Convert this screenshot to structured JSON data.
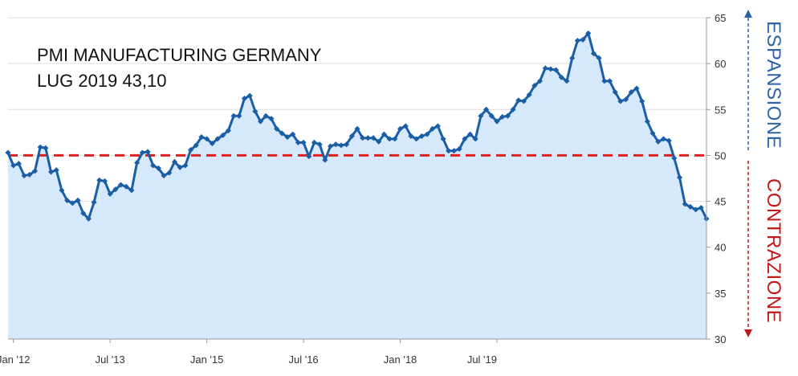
{
  "colors": {
    "line": "#1a5fa6",
    "fill": "#d6e8fb",
    "threshold": "#e02020",
    "expansion": "#2e63a8",
    "contraction": "#c01818",
    "grid": "#dddddd"
  },
  "chart_data": {
    "type": "area",
    "title": "PMI MANUFACTURING GERMANY",
    "subtitle": "LUG 2019 43,10",
    "x_tick_labels": [
      "Jan '12",
      "Jul '13",
      "Jan '15",
      "Jul '16",
      "Jan '18",
      "Jul '19"
    ],
    "x_tick_months": [
      0,
      18,
      36,
      54,
      72,
      90
    ],
    "y_ticks": [
      30,
      35,
      40,
      45,
      50,
      55,
      60,
      65
    ],
    "ylim": [
      30,
      65
    ],
    "grid": "horizontal",
    "threshold": 50,
    "expansion_label": "ESPANSIONE",
    "contraction_label": "CONTRAZIONE",
    "series": [
      {
        "x_start": "Dec 2011",
        "values": [
          50.3,
          48.9,
          49.1,
          47.8,
          47.9,
          48.3,
          50.9,
          50.8,
          48.2,
          48.4,
          46.2,
          45.1,
          44.8,
          45.1,
          43.7,
          43.1,
          44.9,
          47.3,
          47.2,
          45.8,
          46.3,
          46.8,
          46.6,
          46.2,
          49.2,
          50.3,
          50.4,
          48.9,
          48.6,
          47.8,
          48.1,
          49.3,
          48.7,
          48.9,
          50.6,
          51.1,
          52.0,
          51.8,
          51.3,
          51.8,
          52.2,
          52.7,
          54.3,
          54.3,
          56.2,
          56.5,
          54.8,
          53.7,
          54.3,
          54.0,
          52.9,
          52.4,
          52.0,
          52.3,
          51.4,
          51.4,
          49.9,
          51.4,
          51.2,
          49.5,
          51.0,
          51.2,
          51.1,
          51.2,
          52.1,
          52.9,
          51.9,
          51.9,
          51.9,
          51.5,
          52.3,
          51.8,
          51.8,
          52.9,
          53.2,
          52.1,
          51.8,
          52.1,
          52.3,
          52.9,
          53.2,
          51.8,
          50.5,
          50.5,
          50.7,
          51.8,
          52.3,
          51.8,
          54.3,
          55.0,
          54.3,
          53.7,
          54.2,
          54.3,
          55.0,
          56.0,
          55.9,
          56.6,
          57.6,
          58.1,
          59.5,
          59.4,
          59.3,
          58.5,
          58.1,
          60.6,
          62.5,
          62.6,
          63.3,
          61.1,
          60.6,
          58.1,
          58.1,
          56.9,
          55.9,
          56.1,
          56.9,
          57.3,
          55.9,
          53.7,
          52.4,
          51.5,
          51.8,
          51.6,
          49.7,
          47.6,
          44.7,
          44.4,
          44.1,
          44.3,
          43.1
        ]
      }
    ]
  }
}
